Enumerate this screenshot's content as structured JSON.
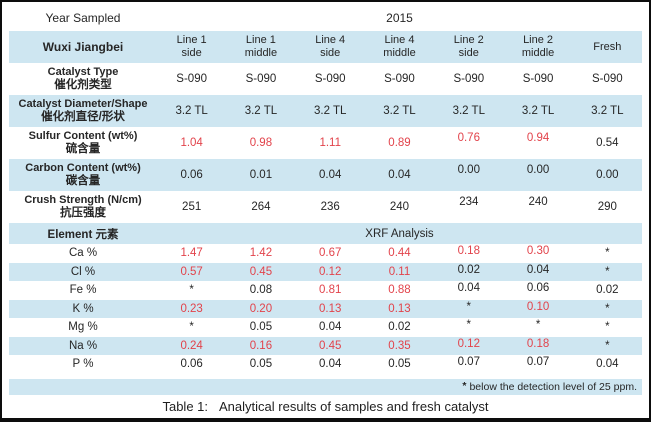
{
  "colors": {
    "band": "#cee6f1",
    "red": "#e2434b",
    "text": "#262626",
    "border": "#0d0d0d"
  },
  "figure": {
    "year_label": "Year Sampled",
    "year_value": "2015",
    "site_label": "Wuxi Jiangbei",
    "columns": [
      "Line 1\nside",
      "Line 1\nmiddle",
      "Line 4\nside",
      "Line 4\nmiddle",
      "Line 2\nside",
      "Line 2\nmiddle",
      "Fresh"
    ],
    "property_rows": [
      {
        "id": "catalyst-type",
        "label_en": "Catalyst Type",
        "label_zh": "催化剂类型",
        "values": [
          "S-090",
          "S-090",
          "S-090",
          "S-090",
          "S-090",
          "S-090",
          "S-090"
        ],
        "red": [
          0,
          0,
          0,
          0,
          0,
          0,
          0
        ]
      },
      {
        "id": "catalyst-diameter-shape",
        "label_en": "Catalyst Diameter/Shape",
        "label_zh": "催化剂直径/形状",
        "values": [
          "3.2 TL",
          "3.2 TL",
          "3.2 TL",
          "3.2 TL",
          "3.2 TL",
          "3.2 TL",
          "3.2 TL"
        ],
        "red": [
          0,
          0,
          0,
          0,
          0,
          0,
          0
        ]
      },
      {
        "id": "sulfur-content",
        "label_en": "Sulfur Content (wt%)",
        "label_zh": "硫含量",
        "values": [
          "1.04",
          "0.98",
          "1.11",
          "0.89",
          "0.76",
          "0.94",
          "0.54"
        ],
        "red": [
          1,
          1,
          1,
          1,
          1,
          1,
          0
        ]
      },
      {
        "id": "carbon-content",
        "label_en": "Carbon Content (wt%)",
        "label_zh": "碳含量",
        "values": [
          "0.06",
          "0.01",
          "0.04",
          "0.04",
          "0.00",
          "0.00",
          "0.00"
        ],
        "red": [
          0,
          0,
          0,
          0,
          0,
          0,
          0
        ]
      },
      {
        "id": "crush-strength",
        "label_en": "Crush Strength (N/cm)",
        "label_zh": "抗压强度",
        "values": [
          "251",
          "264",
          "236",
          "240",
          "234",
          "240",
          "290"
        ],
        "red": [
          0,
          0,
          0,
          0,
          0,
          0,
          0
        ]
      }
    ],
    "element_header": {
      "label": "Element 元素",
      "analysis_label": "XRF Analysis"
    },
    "element_rows": [
      {
        "label": "Ca %",
        "values": [
          "1.47",
          "1.42",
          "0.67",
          "0.44",
          "0.18",
          "0.30",
          "*"
        ],
        "red": [
          1,
          1,
          1,
          1,
          1,
          1,
          0
        ]
      },
      {
        "label": "Cl %",
        "values": [
          "0.57",
          "0.45",
          "0.12",
          "0.11",
          "0.02",
          "0.04",
          "*"
        ],
        "red": [
          1,
          1,
          1,
          1,
          0,
          0,
          0
        ]
      },
      {
        "label": "Fe %",
        "values": [
          "*",
          "0.08",
          "0.81",
          "0.88",
          "0.04",
          "0.06",
          "0.02"
        ],
        "red": [
          0,
          0,
          1,
          1,
          0,
          0,
          0
        ]
      },
      {
        "label": "K %",
        "values": [
          "0.23",
          "0.20",
          "0.13",
          "0.13",
          "*",
          "0.10",
          "*"
        ],
        "red": [
          1,
          1,
          1,
          1,
          0,
          1,
          0
        ]
      },
      {
        "label": "Mg %",
        "values": [
          "*",
          "0.05",
          "0.04",
          "0.02",
          "*",
          "*",
          "*"
        ],
        "red": [
          0,
          0,
          0,
          0,
          0,
          0,
          0
        ]
      },
      {
        "label": "Na %",
        "values": [
          "0.24",
          "0.16",
          "0.45",
          "0.35",
          "0.12",
          "0.18",
          "*"
        ],
        "red": [
          1,
          1,
          1,
          1,
          1,
          1,
          0
        ]
      },
      {
        "label": "P %",
        "values": [
          "0.06",
          "0.05",
          "0.04",
          "0.05",
          "0.07",
          "0.07",
          "0.04"
        ],
        "red": [
          0,
          0,
          0,
          0,
          0,
          0,
          0
        ]
      }
    ],
    "footnote_marker": "*",
    "footnote_text": "below the detection level of 25 ppm.",
    "caption_prefix": "Table 1:",
    "caption_text": "Analytical results of samples and fresh catalyst"
  }
}
